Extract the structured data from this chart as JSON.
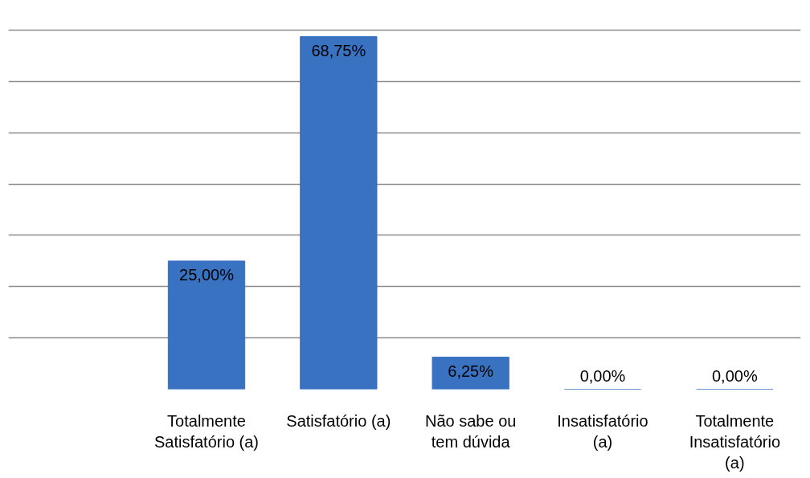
{
  "chart_data": {
    "type": "bar",
    "categories": [
      null,
      "Totalmente\nSatisfatório (a)",
      "Satisfatório (a)",
      "Não sabe ou\ntem dúvida",
      "Insatisfatório\n(a)",
      "Totalmente\nInsatisfatório\n(a)"
    ],
    "values": [
      null,
      25.0,
      68.75,
      6.25,
      0.0,
      0.0
    ],
    "value_labels": [
      null,
      "25,00%",
      "68,75%",
      "6,25%",
      "0,00%",
      "0,00%"
    ],
    "color": "#3a72c2",
    "grid": "y",
    "tick_labels": "x"
  }
}
